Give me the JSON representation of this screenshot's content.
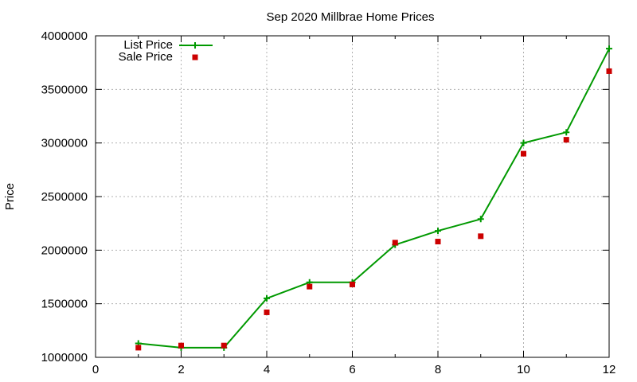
{
  "chart_data": {
    "type": "line",
    "title": "Sep 2020 Millbrae Home Prices",
    "xlabel": "",
    "ylabel": "Price",
    "xlim": [
      0,
      12
    ],
    "ylim": [
      1000000,
      4000000
    ],
    "x_ticks": [
      0,
      2,
      4,
      6,
      8,
      10,
      12
    ],
    "y_ticks": [
      1000000,
      1500000,
      2000000,
      2500000,
      3000000,
      3500000,
      4000000
    ],
    "grid": true,
    "legend_position": "top-left",
    "series": [
      {
        "name": "List Price",
        "style": "line-with-plus-markers",
        "color": "#009900",
        "x": [
          1,
          2,
          3,
          4,
          5,
          6,
          7,
          8,
          9,
          10,
          11,
          12
        ],
        "y": [
          1130000,
          1090000,
          1090000,
          1550000,
          1700000,
          1700000,
          2050000,
          2180000,
          2290000,
          3000000,
          3100000,
          3880000
        ]
      },
      {
        "name": "Sale Price",
        "style": "square-markers",
        "color": "#cc0000",
        "x": [
          1,
          2,
          3,
          4,
          5,
          6,
          7,
          8,
          9,
          10,
          11,
          12
        ],
        "y": [
          1090000,
          1110000,
          1110000,
          1420000,
          1660000,
          1680000,
          2070000,
          2080000,
          2130000,
          2900000,
          3030000,
          3670000
        ]
      }
    ]
  }
}
